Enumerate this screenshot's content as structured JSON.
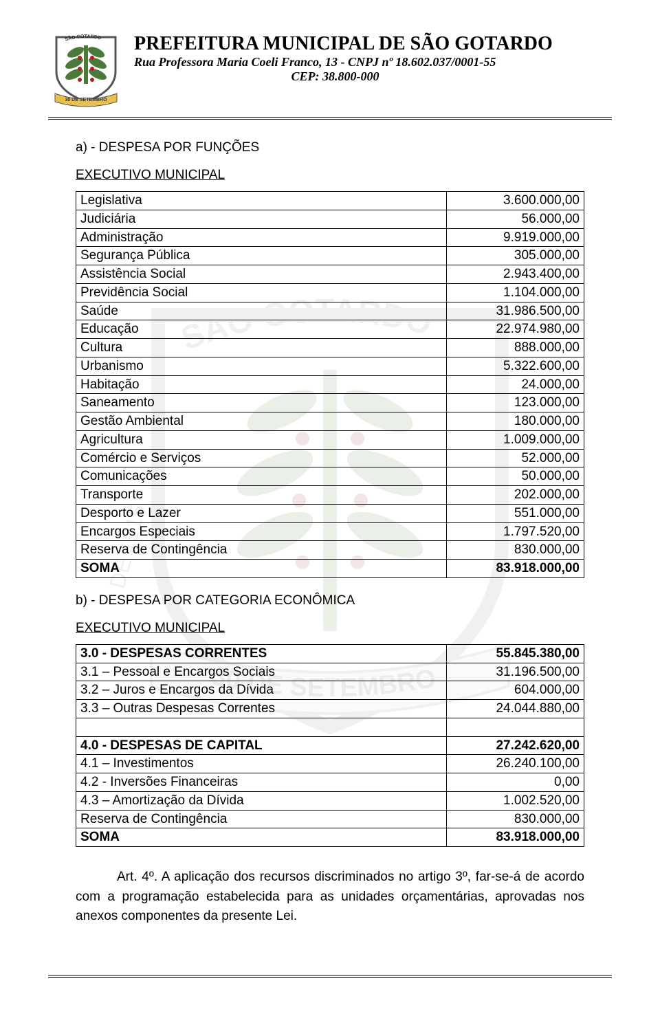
{
  "header": {
    "title": "PREFEITURA MUNICIPAL DE SÃO GOTARDO",
    "subtitle": "Rua Professora Maria Coeli Franco, 13 - CNPJ nº 18.602.037/0001-55",
    "cep": "CEP: 38.800-000"
  },
  "section_a": {
    "label": "a) - DESPESA POR FUNÇÕES",
    "subtitle": "EXECUTIVO MUNICIPAL",
    "rows": [
      {
        "label": "Legislativa",
        "value": "3.600.000,00"
      },
      {
        "label": "Judiciária",
        "value": "56.000,00"
      },
      {
        "label": "Administração",
        "value": "9.919.000,00"
      },
      {
        "label": "Segurança Pública",
        "value": "305.000,00"
      },
      {
        "label": "Assistência Social",
        "value": "2.943.400,00"
      },
      {
        "label": "Previdência Social",
        "value": "1.104.000,00"
      },
      {
        "label": "Saúde",
        "value": "31.986.500,00"
      },
      {
        "label": "Educação",
        "value": "22.974.980,00"
      },
      {
        "label": "Cultura",
        "value": "888.000,00"
      },
      {
        "label": "Urbanismo",
        "value": "5.322.600,00"
      },
      {
        "label": "Habitação",
        "value": "24.000,00"
      },
      {
        "label": "Saneamento",
        "value": "123.000,00"
      },
      {
        "label": "Gestão Ambiental",
        "value": "180.000,00"
      },
      {
        "label": "Agricultura",
        "value": "1.009.000,00"
      },
      {
        "label": "Comércio e Serviços",
        "value": "52.000,00"
      },
      {
        "label": "Comunicações",
        "value": "50.000,00"
      },
      {
        "label": "Transporte",
        "value": "202.000,00"
      },
      {
        "label": "Desporto e Lazer",
        "value": "551.000,00"
      },
      {
        "label": "Encargos Especiais",
        "value": "1.797.520,00"
      },
      {
        "label": "Reserva de Contingência",
        "value": "830.000,00"
      }
    ],
    "soma_label": "SOMA",
    "soma_value": "83.918.000,00"
  },
  "section_b": {
    "label": "b) - DESPESA POR CATEGORIA ECONÔMICA",
    "subtitle": "EXECUTIVO MUNICIPAL",
    "group1": [
      {
        "label": "3.0 - DESPESAS CORRENTES",
        "value": "55.845.380,00",
        "bold": true
      },
      {
        "label": "3.1 – Pessoal e Encargos Sociais",
        "value": "31.196.500,00"
      },
      {
        "label": "3.2 – Juros e Encargos da Dívida",
        "value": "604.000,00"
      },
      {
        "label": "3.3 – Outras Despesas Correntes",
        "value": "24.044.880,00"
      }
    ],
    "group2": [
      {
        "label": "4.0 - DESPESAS DE CAPITAL",
        "value": "27.242.620,00",
        "bold": true
      },
      {
        "label": "4.1 – Investimentos",
        "value": "26.240.100,00"
      },
      {
        "label": "4.2 - Inversões Financeiras",
        "value": "0,00"
      },
      {
        "label": "4.3 – Amortização da Dívida",
        "value": "1.002.520,00"
      },
      {
        "label": "Reserva de Contingência",
        "value": "830.000,00"
      }
    ],
    "soma_label": " SOMA",
    "soma_value": "83.918.000,00"
  },
  "body": {
    "text": "Art. 4º. A aplicação dos recursos discriminados no artigo 3º, far-se-á de acordo com a programação estabelecida para as unidades orçamentárias, aprovadas nos anexos componentes da presente Lei."
  },
  "colors": {
    "text": "#000000",
    "border": "#000000",
    "watermark_green": "#5a8a4a",
    "watermark_gray": "#888888",
    "watermark_red": "#a03030"
  }
}
